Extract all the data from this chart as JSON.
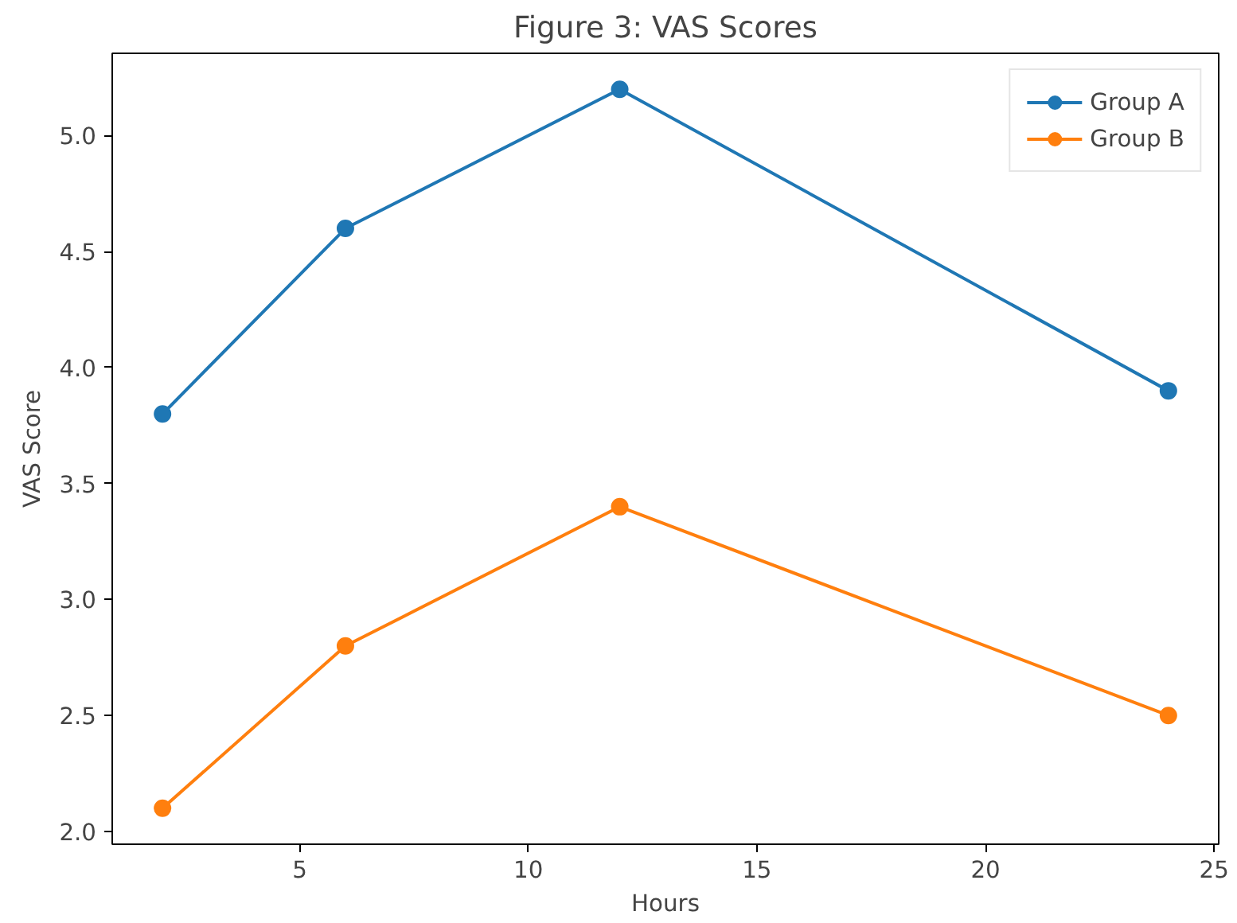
{
  "chart_data": {
    "type": "line",
    "title": "Figure 3: VAS Scores",
    "xlabel": "Hours",
    "ylabel": "VAS Score",
    "x": [
      2,
      6,
      12,
      24
    ],
    "series": [
      {
        "name": "Group A",
        "color": "#1f77b4",
        "values": [
          3.8,
          4.6,
          5.2,
          3.9
        ]
      },
      {
        "name": "Group B",
        "color": "#ff7f0e",
        "values": [
          2.1,
          2.8,
          3.4,
          2.5
        ]
      }
    ],
    "xlim": [
      0.9,
      25.1
    ],
    "ylim": [
      1.945,
      5.355
    ],
    "xticks": [
      5,
      10,
      15,
      20,
      25
    ],
    "yticks": [
      {
        "value": 2,
        "label": "2.0"
      },
      {
        "value": 2.5,
        "label": "2.5"
      },
      {
        "value": 3,
        "label": "3.0"
      },
      {
        "value": 3.5,
        "label": "3.5"
      },
      {
        "value": 4,
        "label": "4.0"
      },
      {
        "value": 4.5,
        "label": "4.5"
      },
      {
        "value": 5,
        "label": "5.0"
      }
    ],
    "legend": "top right",
    "marker": "circle",
    "line_style": "solid",
    "grid": false
  }
}
